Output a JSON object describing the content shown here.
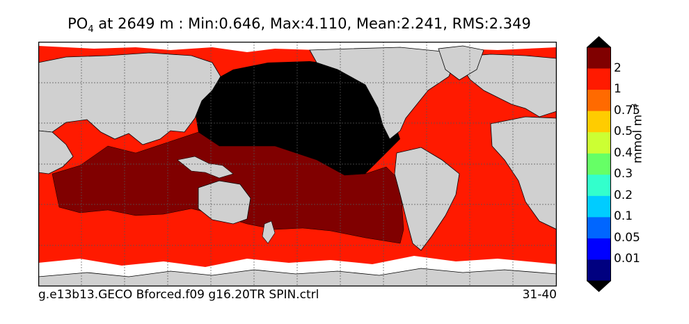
{
  "title": {
    "prefix": "PO",
    "subscript": "4",
    "text": " at 2649 m : Min:0.646, Max:4.110, Mean:2.241, RMS:2.349"
  },
  "footer": {
    "run_name": "g.e13b13.GECO Bforced.f09 g16.20TR SPIN.ctrl",
    "years": "31-40"
  },
  "colorbar": {
    "units": "mmol m",
    "units_exponent": "−3",
    "levels": [
      {
        "label": "2",
        "color": "#800000"
      },
      {
        "label": "1",
        "color": "#ff1a00"
      },
      {
        "label": "0.75",
        "color": "#ff6a00"
      },
      {
        "label": "0.5",
        "color": "#ffcc00"
      },
      {
        "label": "0.4",
        "color": "#ccff33"
      },
      {
        "label": "0.3",
        "color": "#66ff66"
      },
      {
        "label": "0.2",
        "color": "#33ffcc"
      },
      {
        "label": "0.1",
        "color": "#00ccff"
      },
      {
        "label": "0.05",
        "color": "#0066ff"
      },
      {
        "label": "0.01",
        "color": "#0000ff"
      }
    ],
    "top_extend_color": "#000000",
    "bottom_extend_color": "#000000",
    "lowest_band_color": "#000080"
  },
  "map": {
    "land_color": "#d0d0d0",
    "no_data_color": "#ffffff",
    "gridlines": true
  }
}
